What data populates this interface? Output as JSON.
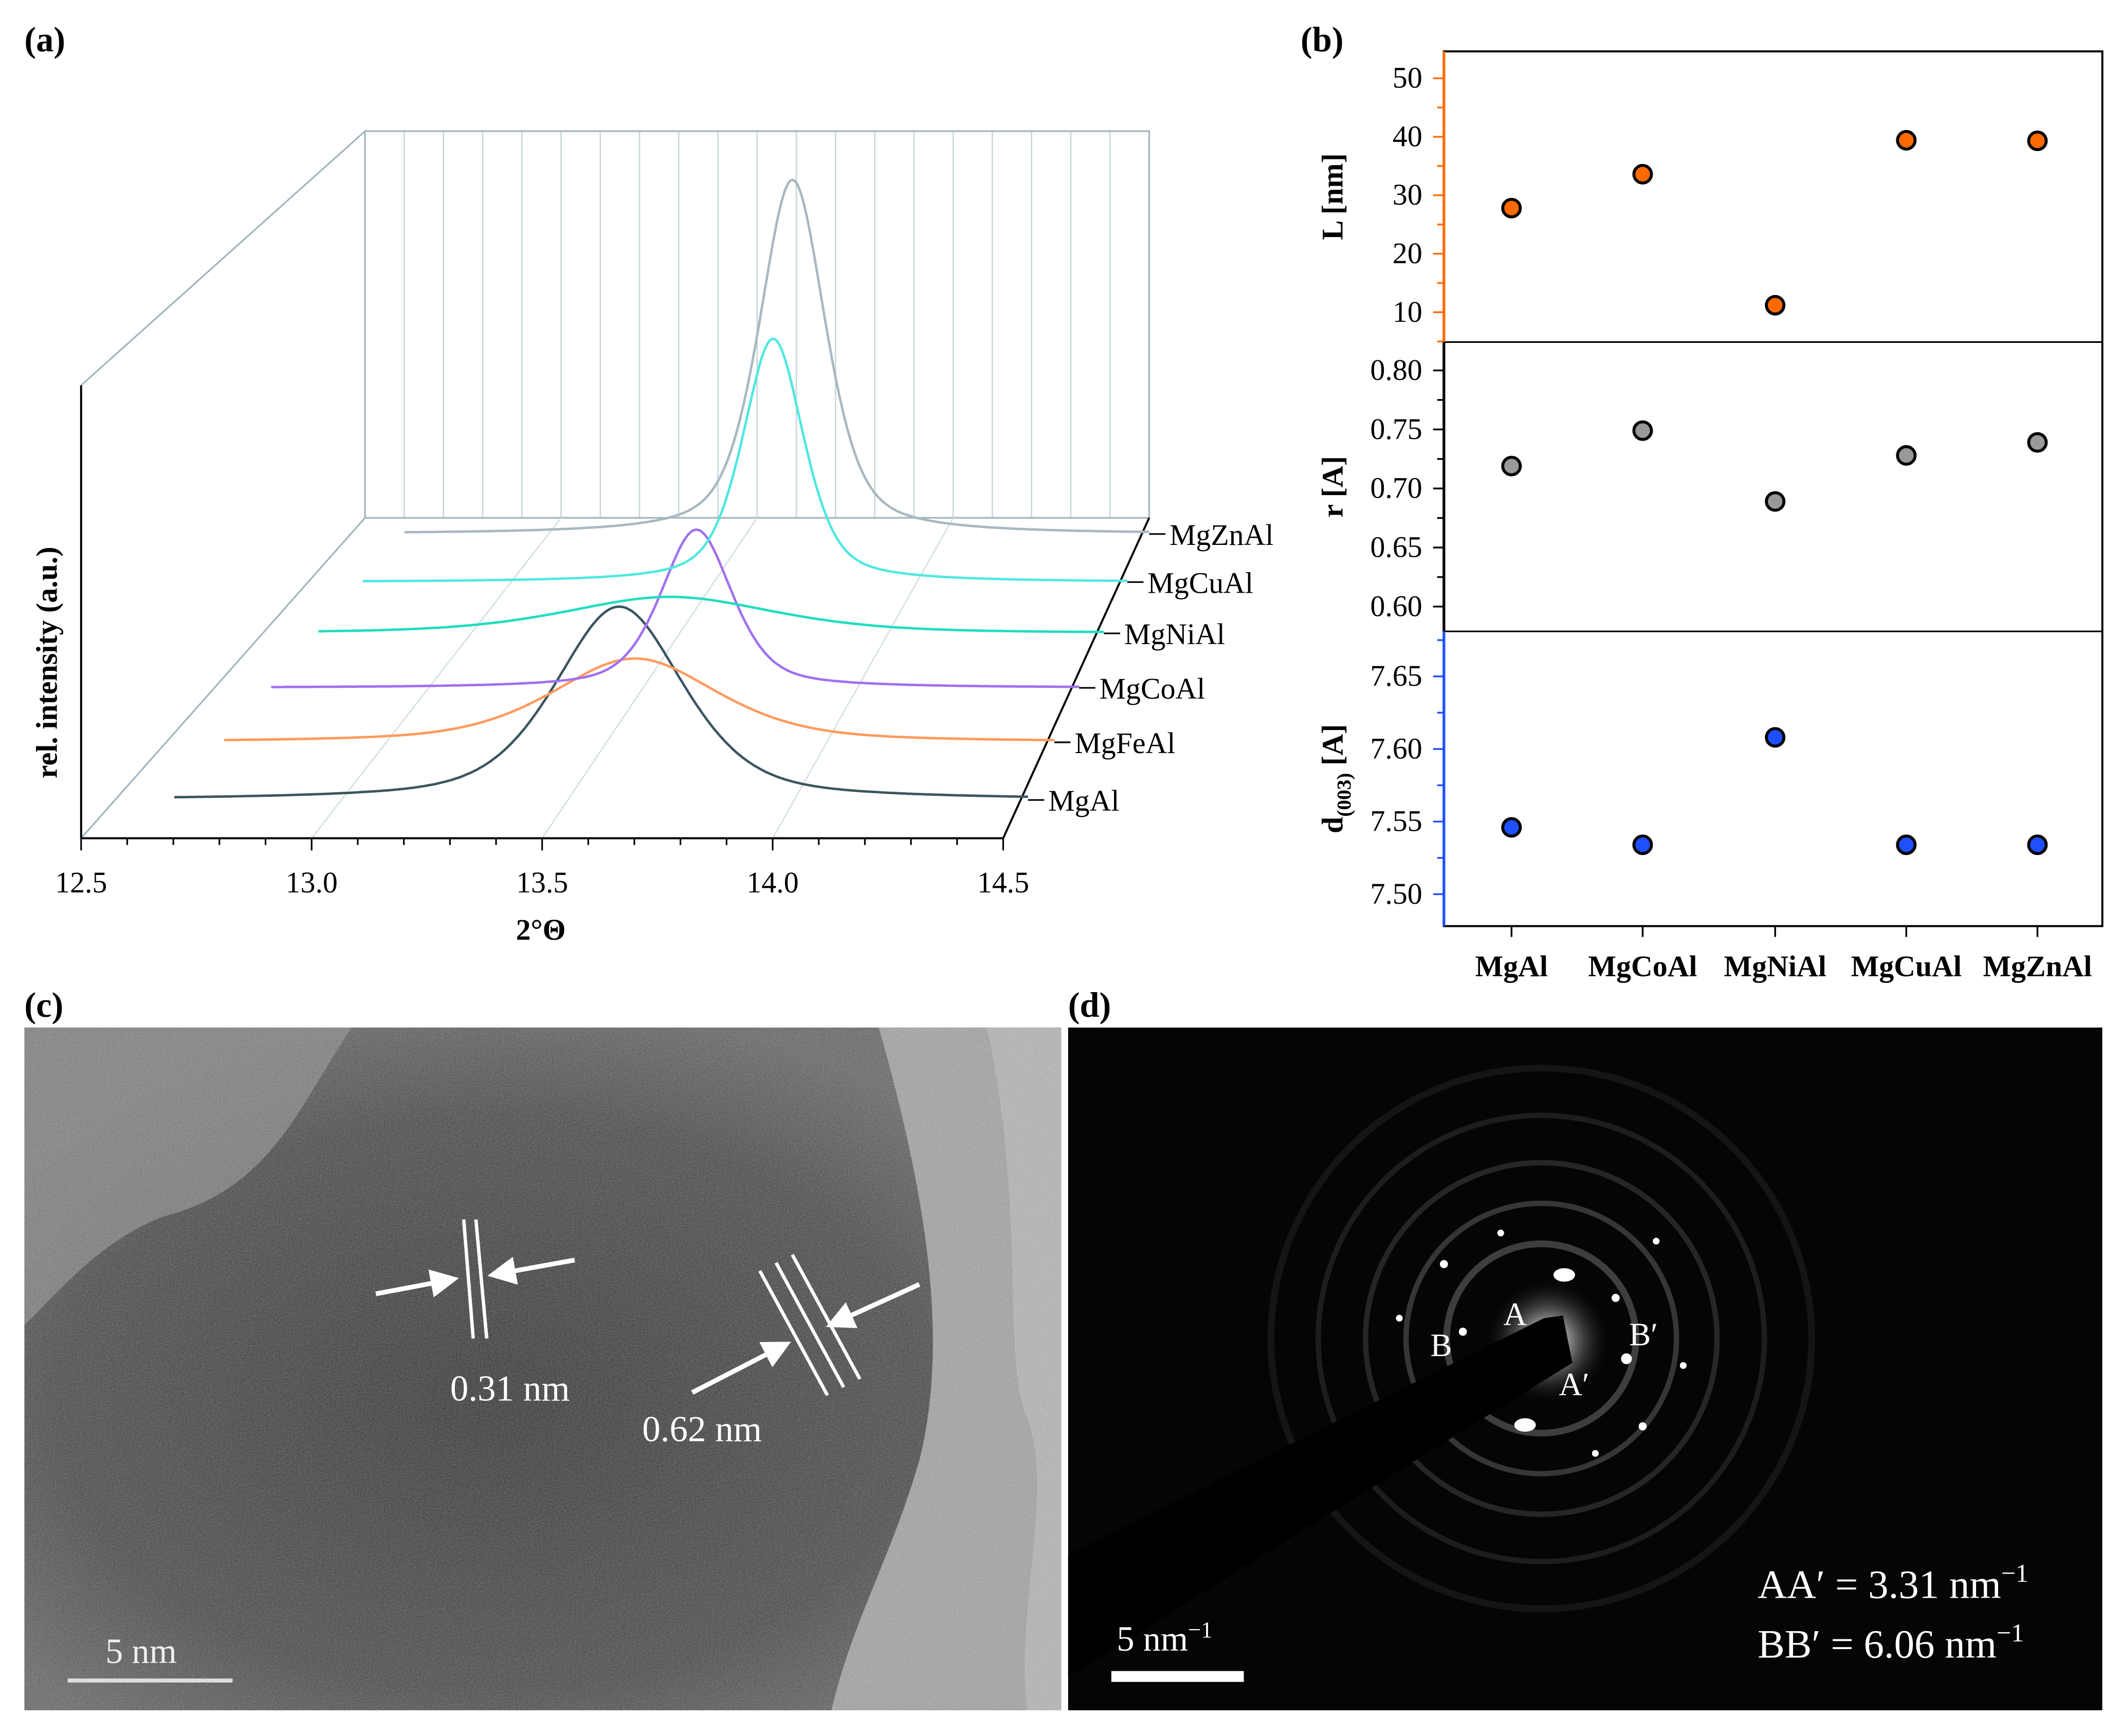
{
  "panels": {
    "a": "(a)",
    "b": "(b)",
    "c": "(c)",
    "d": "(d)"
  },
  "chart_data": [
    {
      "type": "line",
      "style": "3d-waterfall",
      "title": "",
      "xlabel": "2°Θ",
      "ylabel": "rel. intensity (a.u.)",
      "xlim": [
        12.5,
        14.5
      ],
      "xticks": [
        "12.5",
        "13.0",
        "13.5",
        "14.0",
        "14.5"
      ],
      "xtick_values": [
        12.5,
        13.0,
        13.5,
        14.0,
        14.5
      ],
      "series": [
        {
          "name": "MgAl",
          "color": "#3b5560",
          "depth": 0.17,
          "peak_center": 13.59,
          "peak_intensity": 1.43,
          "fwhm": 0.34
        },
        {
          "name": "MgFeAl",
          "color": "#ff9a5c",
          "depth": 0.35,
          "peak_center": 13.54,
          "peak_intensity": 0.62,
          "fwhm": 0.45
        },
        {
          "name": "MgCoAl",
          "color": "#a070f0",
          "depth": 0.52,
          "peak_center": 13.6,
          "peak_intensity": 1.17,
          "fwhm": 0.2
        },
        {
          "name": "MgNiAl",
          "color": "#20dcc0",
          "depth": 0.69,
          "peak_center": 13.45,
          "peak_intensity": 0.27,
          "fwhm": 0.6
        },
        {
          "name": "MgCuAl",
          "color": "#50e8e0",
          "depth": 0.85,
          "peak_center": 13.62,
          "peak_intensity": 1.8,
          "fwhm": 0.18
        },
        {
          "name": "MgZnAl",
          "color": "#a8b8c0",
          "depth": 1.0,
          "peak_center": 13.59,
          "peak_intensity": 2.62,
          "fwhm": 0.2
        }
      ]
    },
    {
      "type": "scatter",
      "style": "stacked-panels",
      "categories": [
        "MgAl",
        "MgCoAl",
        "MgNiAl",
        "MgCuAl",
        "MgZnAl"
      ],
      "panels": [
        {
          "ylabel": "L [nm]",
          "ylabel_main": "L [nm]",
          "color": "#ff6a00",
          "axis_color": "#ff6a00",
          "ylim": [
            4.9,
            54.6
          ],
          "yticks": [
            "10",
            "20",
            "30",
            "40",
            "50"
          ],
          "ytick_values": [
            10,
            20,
            30,
            40,
            50
          ],
          "values": [
            27.8,
            33.6,
            11.2,
            39.4,
            39.3
          ]
        },
        {
          "ylabel": "r [A]",
          "ylabel_main": "r [A]",
          "color": "#999999",
          "axis_color": "#000000",
          "ylim": [
            0.579,
            0.824
          ],
          "yticks": [
            "0.60",
            "0.65",
            "0.70",
            "0.75",
            "0.80"
          ],
          "ytick_values": [
            0.6,
            0.65,
            0.7,
            0.75,
            0.8
          ],
          "values": [
            0.719,
            0.749,
            0.689,
            0.728,
            0.739
          ]
        },
        {
          "ylabel": "d(003) [A]",
          "ylabel_main": "d",
          "ylabel_sub": "(003)",
          "ylabel_unit": " [A]",
          "color": "#1f4fff",
          "axis_color": "#1f4fff",
          "ylim": [
            7.478,
            7.681
          ],
          "yticks": [
            "7.50",
            "7.55",
            "7.60",
            "7.65"
          ],
          "ytick_values": [
            7.5,
            7.55,
            7.6,
            7.65
          ],
          "values": [
            7.546,
            7.534,
            7.608,
            7.534,
            7.534
          ]
        }
      ]
    }
  ],
  "tem": {
    "spacing_1": "0.31 nm",
    "spacing_2": "0.62 nm",
    "scale_bar": "5 nm"
  },
  "saed": {
    "label_A": "A",
    "label_A_prime": "A′",
    "label_B": "B",
    "label_B_prime": "B′",
    "scale_bar": "5 nm",
    "scale_bar_sup": "−1",
    "aa_text": "AA′ = 3.31 nm",
    "bb_text": "BB′ = 6.06 nm",
    "unit_sup": "−1"
  }
}
